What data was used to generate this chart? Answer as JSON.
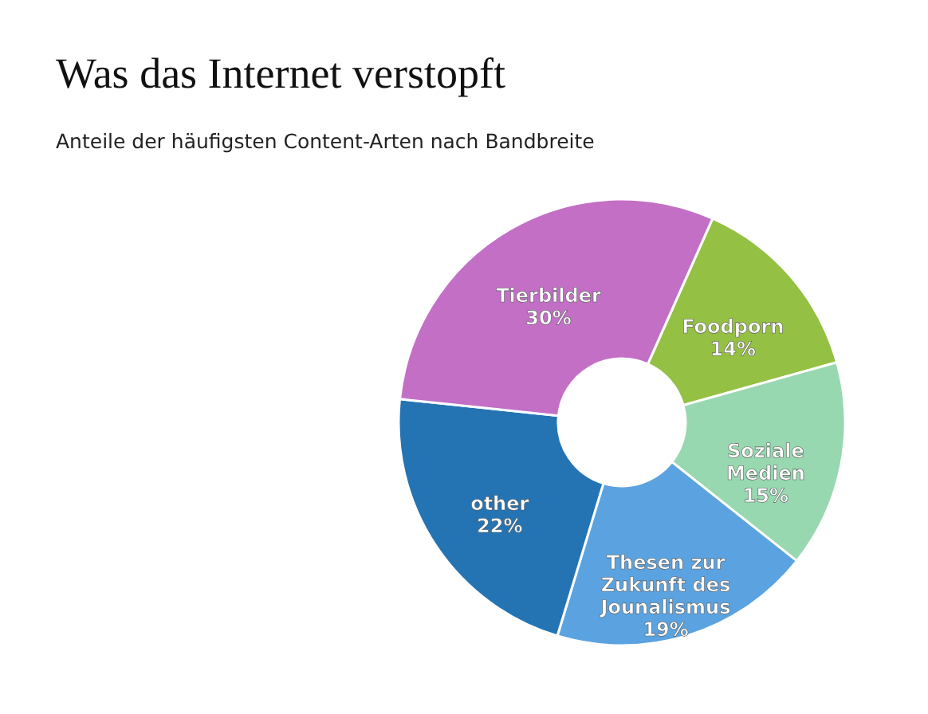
{
  "chart_data": {
    "type": "donut",
    "title": "Was das Internet verstopft",
    "subtitle": "Anteile der häufigsten Content-Arten nach Bandbreite",
    "categories": [
      "Foodporn",
      "Soziale Medien",
      "Thesen zur Zukunft des Jounalismus",
      "other",
      "Tierbilder"
    ],
    "values": [
      14,
      15,
      19,
      22,
      30
    ],
    "colors": [
      "#94c043",
      "#98d8b0",
      "#5ba3e0",
      "#2474b4",
      "#c36fc6"
    ],
    "value_labels": [
      "14%",
      "15%",
      "19%",
      "22%",
      "30%"
    ]
  }
}
